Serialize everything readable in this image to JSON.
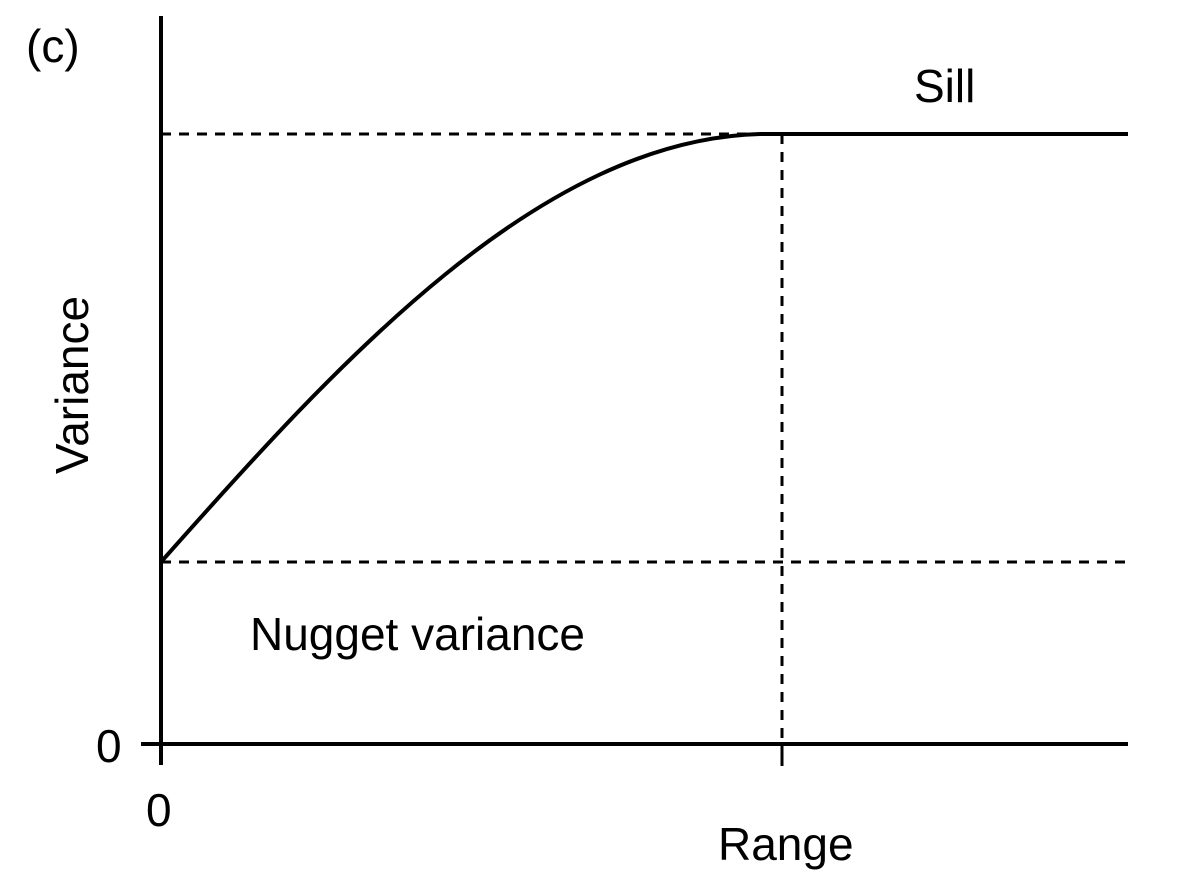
{
  "panel_label": "(c)",
  "labels": {
    "y_axis": "Variance",
    "sill": "Sill",
    "nugget": "Nugget variance",
    "range": "Range",
    "x_origin": "0",
    "y_origin": "0"
  },
  "colors": {
    "ink": "#000000",
    "background": "#ffffff"
  }
}
